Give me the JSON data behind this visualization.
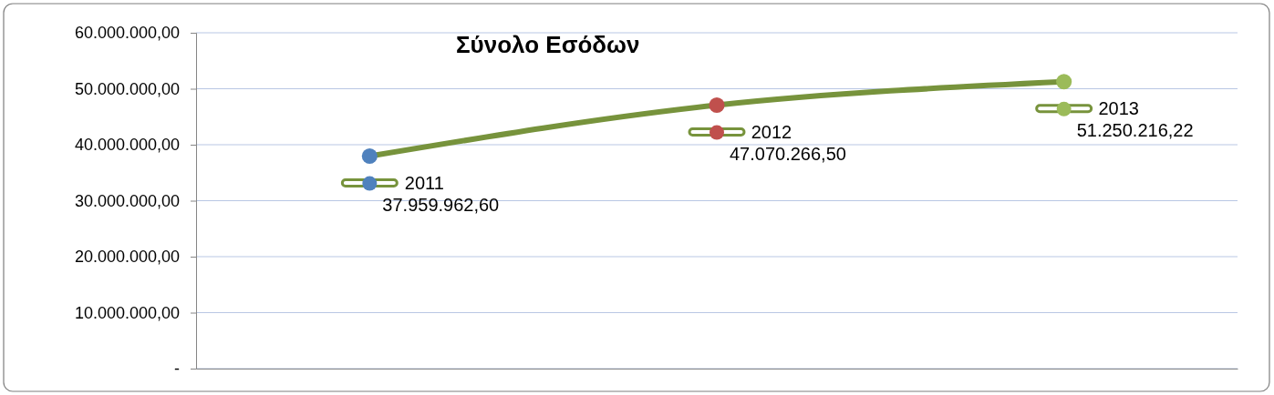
{
  "chart_data": {
    "type": "line",
    "title": "Σύνολο Εσόδων",
    "categories": [
      "2011",
      "2012",
      "2013"
    ],
    "series": [
      {
        "color": "#77933c",
        "colors": [
          "#4f81bd",
          "#c0504d",
          "#9bbb59"
        ],
        "values": [
          37959962.6,
          47070266.5,
          51250216.22
        ],
        "value_labels": [
          "37.959.962,60",
          "47.070.266,50",
          "51.250.216,22"
        ]
      }
    ],
    "ylim": [
      0,
      60000000
    ],
    "yticks": [
      {
        "value": 0,
        "label": "-"
      },
      {
        "value": 10000000,
        "label": "10.000.000,00"
      },
      {
        "value": 20000000,
        "label": "20.000.000,00"
      },
      {
        "value": 30000000,
        "label": "30.000.000,00"
      },
      {
        "value": 40000000,
        "label": "40.000.000,00"
      },
      {
        "value": 50000000,
        "label": "50.000.000,00"
      },
      {
        "value": 60000000,
        "label": "60.000.000,00"
      }
    ],
    "grid": "y",
    "tick_labels": "y",
    "marker": "circle",
    "line_style": "solid"
  }
}
